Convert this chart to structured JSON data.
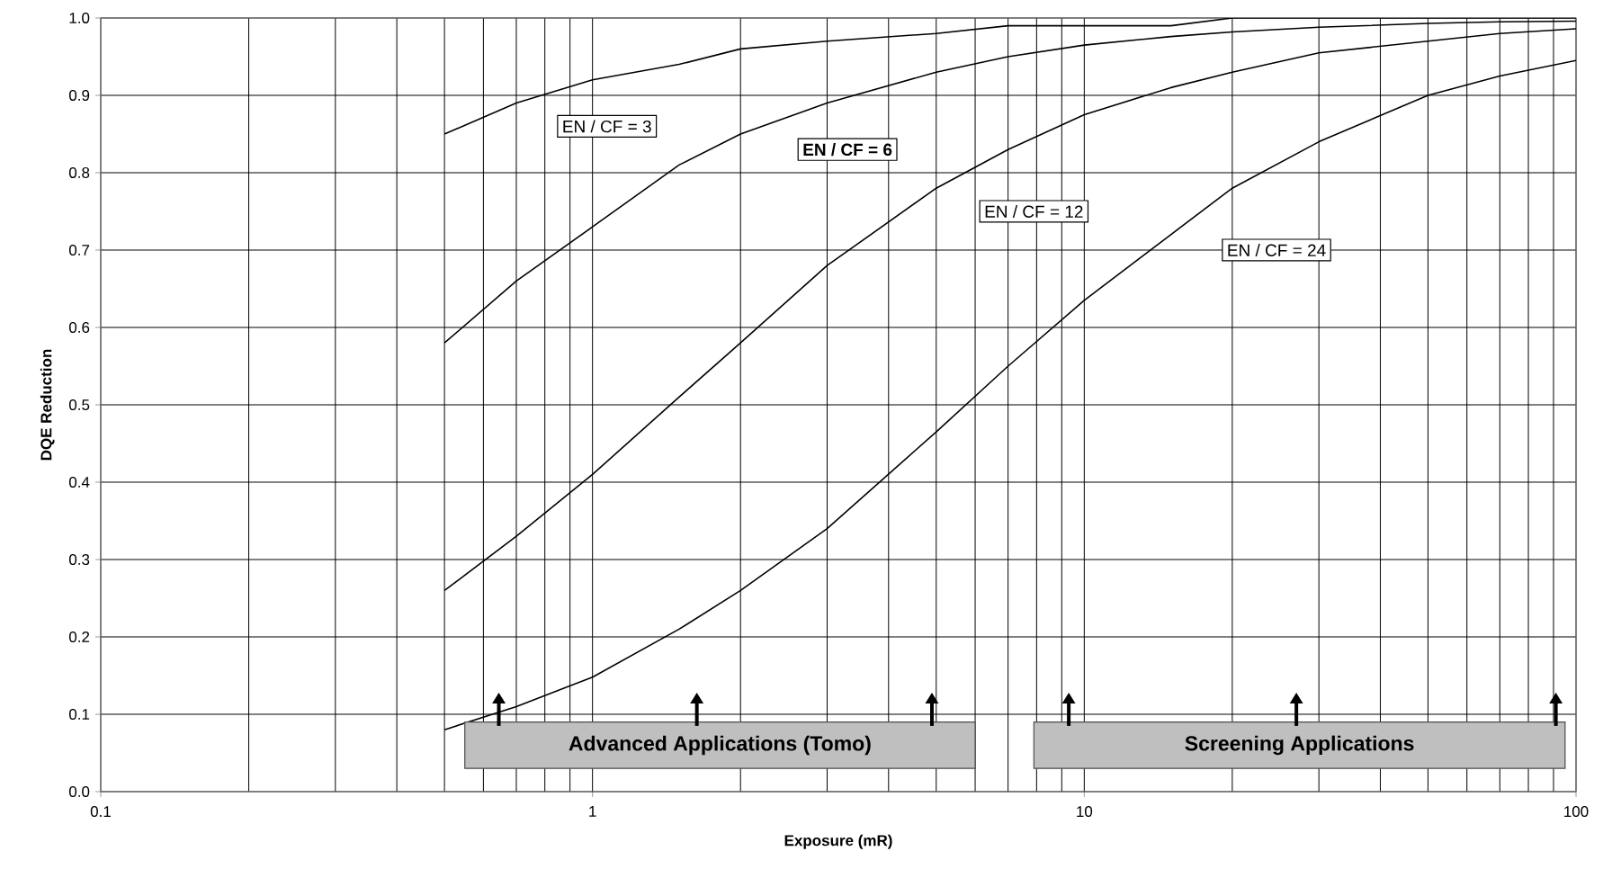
{
  "chart_data": {
    "type": "line",
    "xlabel": "Exposure (mR)",
    "ylabel": "DQE Reduction",
    "log": "x",
    "grid": true,
    "marker": "none",
    "line_style": "solid",
    "xlim": [
      0.1,
      100
    ],
    "xticks": [
      0.1,
      1,
      10,
      100
    ],
    "ylim": [
      0,
      1
    ],
    "yticks": [
      {
        "value": 0,
        "label": "0.0"
      },
      {
        "value": 0.1,
        "label": "0.1"
      },
      {
        "value": 0.2,
        "label": "0.2"
      },
      {
        "value": 0.3,
        "label": "0.3"
      },
      {
        "value": 0.4,
        "label": "0.4"
      },
      {
        "value": 0.5,
        "label": "0.5"
      },
      {
        "value": 0.6,
        "label": "0.6"
      },
      {
        "value": 0.7,
        "label": "0.7"
      },
      {
        "value": 0.8,
        "label": "0.8"
      },
      {
        "value": 0.9,
        "label": "0.9"
      },
      {
        "value": 1,
        "label": "1.0"
      }
    ],
    "x": [
      0.5,
      0.7,
      1,
      1.5,
      2,
      3,
      5,
      7,
      10,
      15,
      20,
      30,
      50,
      70,
      100
    ],
    "series": [
      {
        "color": "#000000",
        "values": [
          0.85,
          0.89,
          0.92,
          0.94,
          0.96,
          0.97,
          0.98,
          0.99,
          0.99,
          0.99,
          1.0,
          1.0,
          1.0,
          1.0,
          1.0
        ]
      },
      {
        "color": "#000000",
        "values": [
          0.58,
          0.66,
          0.73,
          0.81,
          0.85,
          0.89,
          0.93,
          0.95,
          0.965,
          0.976,
          0.982,
          0.988,
          0.993,
          0.995,
          0.996
        ]
      },
      {
        "color": "#000000",
        "values": [
          0.26,
          0.33,
          0.41,
          0.51,
          0.58,
          0.68,
          0.78,
          0.83,
          0.875,
          0.91,
          0.93,
          0.955,
          0.97,
          0.98,
          0.986
        ]
      },
      {
        "color": "#000000",
        "values": [
          0.08,
          0.11,
          0.148,
          0.21,
          0.26,
          0.34,
          0.465,
          0.55,
          0.635,
          0.72,
          0.78,
          0.84,
          0.9,
          0.925,
          0.945
        ]
      }
    ],
    "annotations": [
      "EN / CF = 3",
      "**EN / CF = 6**",
      "EN / CF = 12",
      "EN / CF = 24",
      "Advanced Applications (Tomo)",
      "Screening Applications"
    ]
  }
}
